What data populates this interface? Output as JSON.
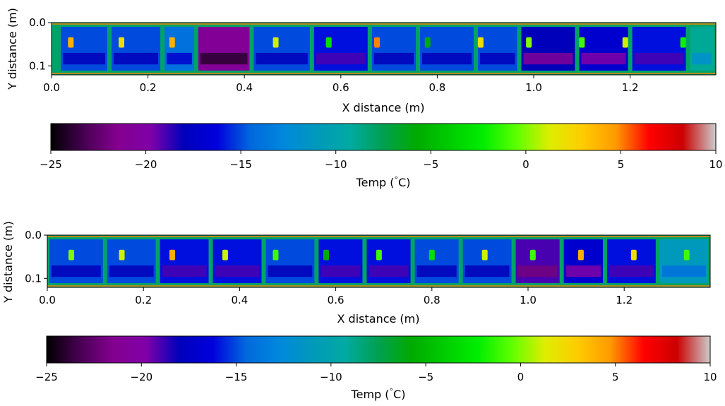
{
  "chart_data": [
    {
      "type": "heatmap",
      "title": "",
      "xlabel": "X distance (m)",
      "ylabel": "Y distance (m)",
      "xlim": [
        0.0,
        1.38
      ],
      "ylim": [
        0.0,
        0.11
      ],
      "x_ticks": [
        "0.0",
        "0.2",
        "0.4",
        "0.6",
        "0.8",
        "1.0",
        "1.2"
      ],
      "y_ticks": [
        "0.0",
        "0.1"
      ],
      "modules": [
        {
          "x_start": 0.015,
          "x_end": 0.12,
          "temp": -15
        },
        {
          "x_start": 0.12,
          "x_end": 0.23,
          "temp": -15
        },
        {
          "x_start": 0.23,
          "x_end": 0.3,
          "temp": -14
        },
        {
          "x_start": 0.3,
          "x_end": 0.415,
          "temp": -21
        },
        {
          "x_start": 0.415,
          "x_end": 0.54,
          "temp": -15
        },
        {
          "x_start": 0.54,
          "x_end": 0.66,
          "temp": -16
        },
        {
          "x_start": 0.66,
          "x_end": 0.76,
          "temp": -15
        },
        {
          "x_start": 0.76,
          "x_end": 0.88,
          "temp": -15
        },
        {
          "x_start": 0.88,
          "x_end": 0.97,
          "temp": -15
        },
        {
          "x_start": 0.97,
          "x_end": 1.09,
          "temp": -18
        },
        {
          "x_start": 1.09,
          "x_end": 1.2,
          "temp": -17
        },
        {
          "x_start": 1.2,
          "x_end": 1.32,
          "temp": -16
        },
        {
          "x_start": 1.32,
          "x_end": 1.38,
          "temp": -9
        }
      ],
      "hot_spots": [
        {
          "x": 0.04,
          "temp": 4
        },
        {
          "x": 0.145,
          "temp": 2
        },
        {
          "x": 0.25,
          "temp": 4
        },
        {
          "x": 0.465,
          "temp": 1
        },
        {
          "x": 0.575,
          "temp": -3
        },
        {
          "x": 0.675,
          "temp": 5
        },
        {
          "x": 0.78,
          "temp": -6
        },
        {
          "x": 0.89,
          "temp": 2
        },
        {
          "x": 0.99,
          "temp": 0
        },
        {
          "x": 1.1,
          "temp": -1
        },
        {
          "x": 1.19,
          "temp": 1
        },
        {
          "x": 1.31,
          "temp": -2
        }
      ],
      "colorbar": {
        "label": "Temp (°C)",
        "label_text": "Temp (",
        "label_degree": "°",
        "label_unit": "C)",
        "range": [
          -25,
          10
        ],
        "ticks": [
          "−25",
          "−20",
          "−15",
          "−10",
          "−5",
          "0",
          "5",
          "10"
        ],
        "colormap": "nipy_spectral"
      }
    },
    {
      "type": "heatmap",
      "title": "",
      "xlabel": "X distance (m)",
      "ylabel": "Y distance (m)",
      "xlim": [
        0.0,
        1.38
      ],
      "ylim": [
        0.0,
        0.11
      ],
      "x_ticks": [
        "0.0",
        "0.2",
        "0.4",
        "0.6",
        "0.8",
        "1.0",
        "1.2"
      ],
      "y_ticks": [
        "0.0",
        "0.1"
      ],
      "modules": [
        {
          "x_start": 0.0,
          "x_end": 0.12,
          "temp": -15
        },
        {
          "x_start": 0.12,
          "x_end": 0.23,
          "temp": -15
        },
        {
          "x_start": 0.23,
          "x_end": 0.34,
          "temp": -16
        },
        {
          "x_start": 0.34,
          "x_end": 0.45,
          "temp": -16
        },
        {
          "x_start": 0.45,
          "x_end": 0.56,
          "temp": -15
        },
        {
          "x_start": 0.56,
          "x_end": 0.66,
          "temp": -16
        },
        {
          "x_start": 0.66,
          "x_end": 0.76,
          "temp": -16
        },
        {
          "x_start": 0.76,
          "x_end": 0.86,
          "temp": -15
        },
        {
          "x_start": 0.86,
          "x_end": 0.97,
          "temp": -15
        },
        {
          "x_start": 0.97,
          "x_end": 1.07,
          "temp": -19
        },
        {
          "x_start": 1.07,
          "x_end": 1.16,
          "temp": -17
        },
        {
          "x_start": 1.16,
          "x_end": 1.27,
          "temp": -16
        },
        {
          "x_start": 1.27,
          "x_end": 1.38,
          "temp": -11
        }
      ],
      "hot_spots": [
        {
          "x": 0.05,
          "temp": 0
        },
        {
          "x": 0.155,
          "temp": 1
        },
        {
          "x": 0.26,
          "temp": 4
        },
        {
          "x": 0.37,
          "temp": 1
        },
        {
          "x": 0.475,
          "temp": -1
        },
        {
          "x": 0.58,
          "temp": -6
        },
        {
          "x": 0.69,
          "temp": -1
        },
        {
          "x": 0.8,
          "temp": -3
        },
        {
          "x": 0.91,
          "temp": 1
        },
        {
          "x": 1.01,
          "temp": -1
        },
        {
          "x": 1.11,
          "temp": 4
        },
        {
          "x": 1.22,
          "temp": 2
        },
        {
          "x": 1.33,
          "temp": -1
        }
      ],
      "colorbar": {
        "label": "Temp (°C)",
        "label_text": "Temp (",
        "label_degree": "°",
        "label_unit": "C)",
        "range": [
          -25,
          10
        ],
        "ticks": [
          "−25",
          "−20",
          "−15",
          "−10",
          "−5",
          "0",
          "5",
          "10"
        ],
        "colormap": "nipy_spectral"
      }
    }
  ]
}
